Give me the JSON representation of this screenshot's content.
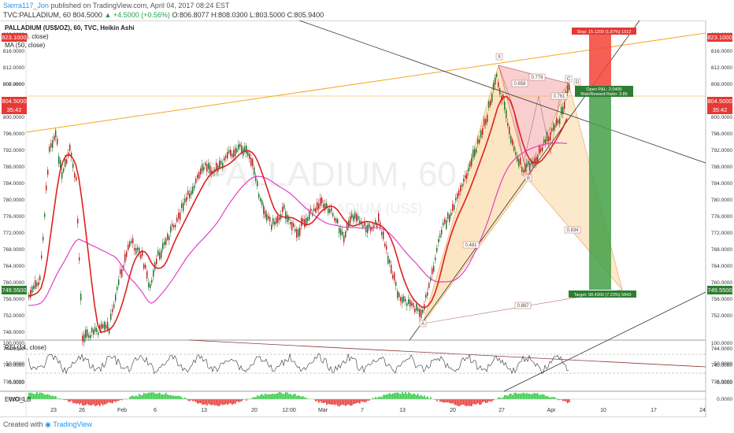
{
  "header": {
    "publisher": "Sierra117_Jon",
    "published_text": "published on TradingView.com, April 04, 2017 08:24 EST",
    "symbol_line_prefix": "TVC:PALLADIUM, 60",
    "last_price": "804.5000",
    "change": "▲ +4.5000 (+0.56%)",
    "ohlc": "O:806.8077 H:808.0300 L:803.5000 C:805.9400"
  },
  "legend": {
    "title": "PALLADIUM (US$/OZ), 60, TVC, Heikin Ashi",
    "ma200": "MA (200, close)",
    "ma50": "MA (50, close)"
  },
  "price_axis": {
    "ticks": [
      "820.0000",
      "816.0000",
      "812.0000",
      "808.0000",
      "807.9800",
      "800.0000",
      "796.0000",
      "792.0000",
      "788.0000",
      "784.0000",
      "780.0000",
      "776.0000",
      "772.0000",
      "768.0000",
      "764.0000",
      "760.0000",
      "756.0000",
      "752.0000",
      "748.0000",
      "744.0000",
      "740.0000",
      "736.0000"
    ],
    "ticks_right": [
      "820.0000",
      "816.0000",
      "812.0000",
      "808.0000",
      "800.0000",
      "796.0000",
      "792.0000",
      "788.0000",
      "784.0000",
      "780.0000",
      "776.0000",
      "772.0000",
      "768.0000",
      "764.0000",
      "760.0000",
      "756.0000",
      "752.0000",
      "744.0000",
      "740.0000",
      "736.0000"
    ],
    "tag_stop": "823.1000",
    "tag_current": "804.5000",
    "tag_time": "35:42",
    "tag_target": "749.5500"
  },
  "rsi": {
    "label": "RSI (14, close)",
    "ticks": [
      "100.0000",
      "50.0000",
      "0.0000"
    ]
  },
  "ewo": {
    "label": "EWO_LB",
    "tick": "0.0000"
  },
  "time_axis": [
    "23",
    "26",
    "Feb",
    "6",
    "13",
    "20",
    "12:00",
    "Mar",
    "7",
    "13",
    "20",
    "27",
    "Apr",
    "10",
    "17",
    "24"
  ],
  "trade": {
    "stop_text": "Stop: 15.1200 (1.87%) 1512",
    "open_pl": "Open P&L: 2.0400",
    "rr": "Risk/Reward Ratio: 3.86",
    "target_text": "Target: 58.4300 (7.23%) 5843"
  },
  "pattern": {
    "points": [
      "X",
      "A",
      "B",
      "C",
      "D"
    ],
    "ratios": [
      "0.658",
      "0.779",
      "0.761",
      "0.834",
      "0.481",
      "0.887"
    ]
  },
  "watermark": {
    "big": "PALLADIUM, 60",
    "small": "PALLADIUM (US$)"
  },
  "footer": {
    "created_with": "Created with",
    "brand": "TradingView"
  },
  "colors": {
    "ma200": "#e040c8",
    "ma50": "#e02020",
    "candle_up": "#1f6e2a",
    "candle_down": "#b71c1c",
    "stop_zone": "#f44336",
    "target_zone": "#43a047",
    "pattern_red": "#f4a6a6",
    "pattern_orange": "#f9cf8f",
    "orange_line": "#f5a623"
  }
}
